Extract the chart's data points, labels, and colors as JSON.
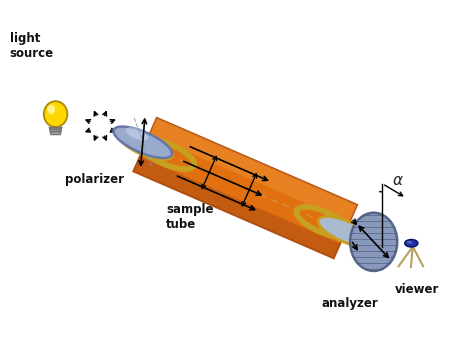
{
  "bg_color": "#ffffff",
  "labels": {
    "light_source": "light\nsource",
    "polarizer": "polarizer",
    "sample_tube": "sample\ntube",
    "analyzer": "analyzer",
    "viewer": "viewer",
    "alpha": "α"
  },
  "colors": {
    "bulb_body": "#FFD700",
    "tube_body": "#E07010",
    "tube_highlight": "#F09030",
    "tube_shadow": "#B05010",
    "tube_ring": "#C8A020",
    "polarizer_disc": "#99AACC",
    "analyzer_disc": "#8899BB",
    "label_color": "#111111",
    "dashed_line": "#CC9944",
    "alpha_color": "#222222"
  },
  "figsize": [
    4.74,
    3.55
  ],
  "dpi": 100
}
